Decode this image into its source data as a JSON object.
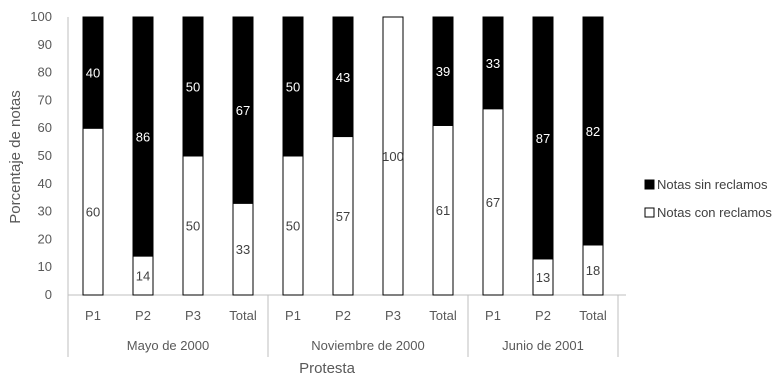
{
  "chart_data": {
    "type": "bar",
    "stacked": true,
    "percent": true,
    "ylabel": "Porcentaje de notas",
    "xlabel": "Protesta",
    "ylim": [
      0,
      100
    ],
    "yticks": [
      0,
      10,
      20,
      30,
      40,
      50,
      60,
      70,
      80,
      90,
      100
    ],
    "grid": false,
    "legend_position": "right",
    "groups": [
      {
        "label": "Mayo de 2000",
        "categories": [
          "P1",
          "P2",
          "P3",
          "Total"
        ]
      },
      {
        "label": "Noviembre de 2000",
        "categories": [
          "P1",
          "P2",
          "P3",
          "Total"
        ]
      },
      {
        "label": "Junio de 2001",
        "categories": [
          "P1",
          "P2",
          "Total"
        ]
      }
    ],
    "series": [
      {
        "name": "Notas con reclamos",
        "color": "#ffffff",
        "values": [
          60,
          14,
          50,
          33,
          50,
          57,
          100,
          61,
          67,
          13,
          18
        ]
      },
      {
        "name": "Notas sin reclamos",
        "color": "#000000",
        "values": [
          40,
          86,
          50,
          67,
          50,
          43,
          0,
          39,
          33,
          87,
          82
        ]
      }
    ],
    "legend": [
      "Notas sin reclamos",
      "Notas con reclamos"
    ]
  }
}
